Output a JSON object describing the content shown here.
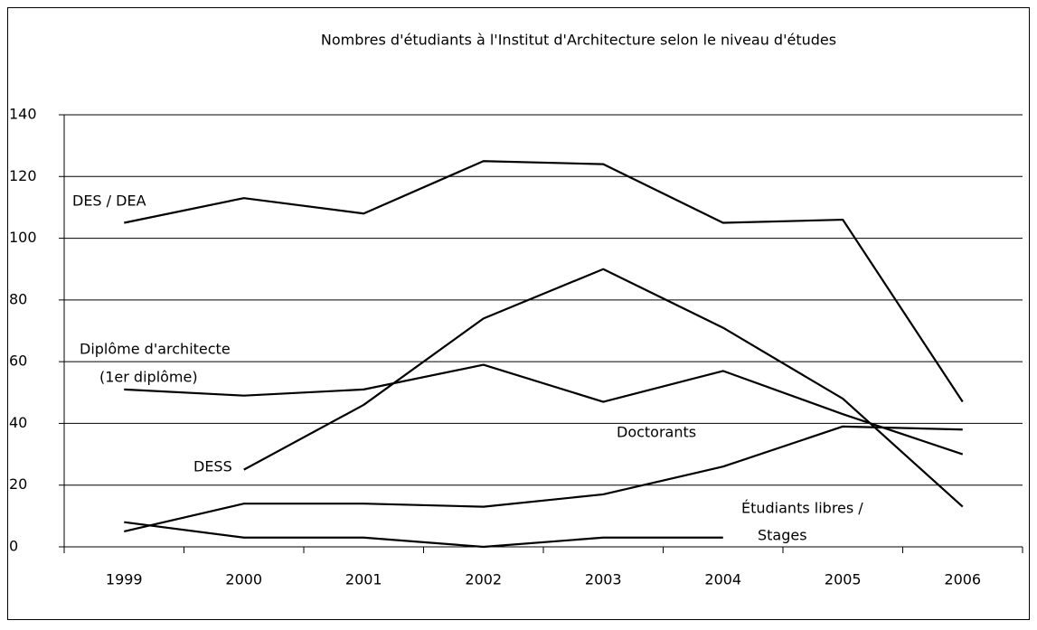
{
  "chart_data": {
    "type": "line",
    "title": "Nombres d'étudiants à l'Institut d'Architecture selon le niveau d'études",
    "categories": [
      "1999",
      "2000",
      "2001",
      "2002",
      "2003",
      "2004",
      "2005",
      "2006"
    ],
    "series": [
      {
        "name": "DES / DEA",
        "color": "#000000",
        "values": [
          105,
          113,
          108,
          125,
          124,
          105,
          106,
          47
        ]
      },
      {
        "name": "Diplôme d'architecte (1er diplôme)",
        "color": "#000000",
        "values": [
          51,
          49,
          51,
          59,
          47,
          57,
          43,
          30
        ]
      },
      {
        "name": "DESS",
        "color": "#000000",
        "values": [
          null,
          25,
          46,
          74,
          90,
          71,
          48,
          13
        ]
      },
      {
        "name": "Doctorants",
        "color": "#000000",
        "values": [
          5,
          14,
          14,
          13,
          17,
          26,
          39,
          38
        ]
      },
      {
        "name": "Étudiants libres / Stages",
        "color": "#000000",
        "values": [
          8,
          3,
          3,
          0,
          3,
          3,
          null,
          null
        ]
      }
    ],
    "annotations": [
      "DES / DEA",
      "Diplôme d'architecte",
      "(1er diplôme)",
      "DESS",
      "Doctorants",
      "Étudiants libres /",
      "Stages"
    ],
    "ylim": [
      0,
      140
    ],
    "yticks": [
      0,
      20,
      40,
      60,
      80,
      100,
      120,
      140
    ],
    "grid": true
  }
}
